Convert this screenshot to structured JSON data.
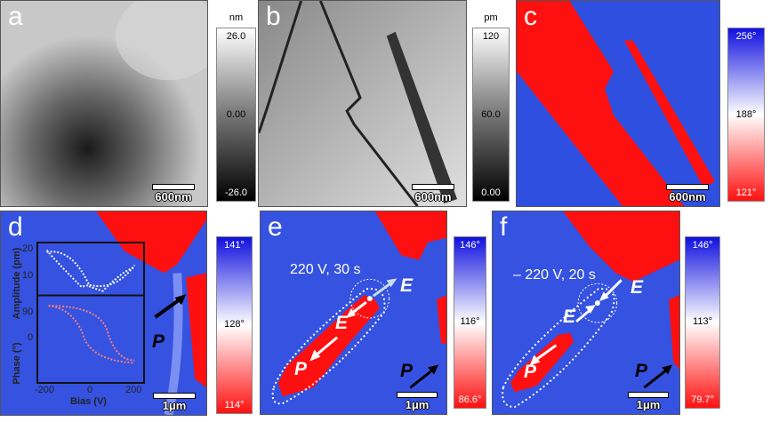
{
  "panels": {
    "a": {
      "label": "a",
      "scale": "600nm",
      "colorbar": {
        "unit": "nm",
        "max": "26.0",
        "mid": "0.00",
        "min": "-26.0"
      }
    },
    "b": {
      "label": "b",
      "scale": "600nm",
      "colorbar": {
        "unit": "pm",
        "max": "120",
        "mid": "60.0",
        "min": "0.00"
      }
    },
    "c": {
      "label": "c",
      "scale": "600nm",
      "colorbar": {
        "max": "256°",
        "mid": "188°",
        "min": "121°"
      }
    },
    "d": {
      "label": "d",
      "scale": "1μm",
      "p_label": "P",
      "colorbar": {
        "max": "141°",
        "mid": "128°",
        "min": "114°"
      },
      "inset": {
        "ylabel_top": "Amplitude (pm)",
        "ylabel_bottom": "Phase (°)",
        "xlabel": "Bias (V)",
        "yticks_top": [
          "20",
          "10"
        ],
        "yticks_bottom": [
          "90",
          "0"
        ],
        "xticks": [
          "-200",
          "0",
          "200"
        ]
      }
    },
    "e": {
      "label": "e",
      "scale": "1μm",
      "condition": "220 V, 30 s",
      "e_label": "E",
      "p_label": "P",
      "colorbar": {
        "max": "146°",
        "mid": "116°",
        "min": "86.6°"
      }
    },
    "f": {
      "label": "f",
      "scale": "1μm",
      "condition": "– 220 V, 20 s",
      "e_label": "E",
      "p_label": "P",
      "colorbar": {
        "max": "146°",
        "mid": "113°",
        "min": "79.7°"
      }
    }
  },
  "colors": {
    "blue": "#2f4fe0",
    "red": "#ff1010",
    "white": "#ffffff"
  }
}
